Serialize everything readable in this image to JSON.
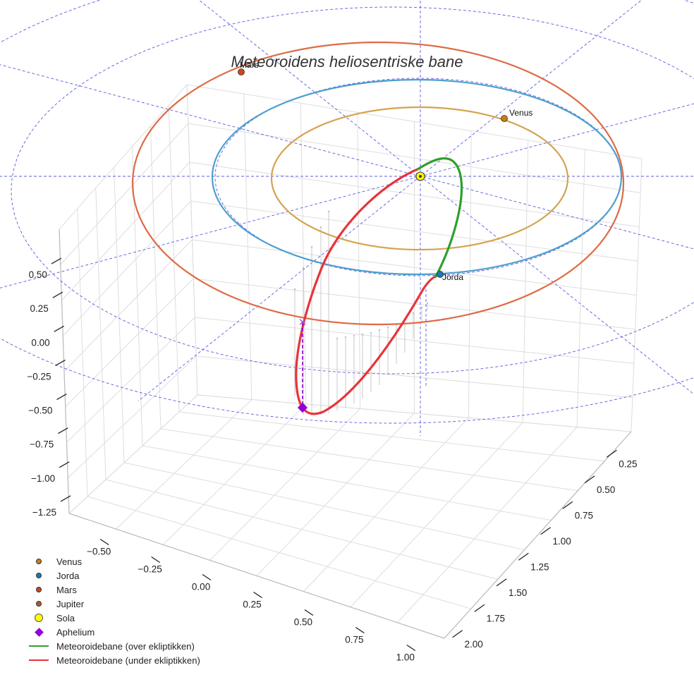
{
  "chart_data": {
    "type": "3d-line",
    "title": "Meteoroidens heliosentriske bane",
    "axes": {
      "x": {
        "ticks": [
          "−0.50",
          "−0.25",
          "0.00",
          "0.25",
          "0.50",
          "0.75",
          "1.00"
        ],
        "range": [
          -0.7,
          1.15
        ]
      },
      "y": {
        "ticks": [
          "0.25",
          "0.50",
          "0.75",
          "1.00",
          "1.25",
          "1.50",
          "1.75",
          "2.00"
        ],
        "range": [
          0.1,
          2.1
        ]
      },
      "z": {
        "ticks": [
          "0.50",
          "0.25",
          "0.00",
          "−0.25",
          "−0.50",
          "−0.75",
          "−1.00",
          "−1.25"
        ],
        "range": [
          -1.3,
          0.6
        ]
      }
    },
    "grid": true,
    "legend_position": "bottom-left",
    "planets": [
      {
        "name": "Venus",
        "label": "Venus",
        "color": "#c77d1a",
        "orbit_color": "#d4a34f",
        "orbit_radius_au": 0.72
      },
      {
        "name": "Jorda",
        "label": "Jorda",
        "color": "#1f77b4",
        "orbit_color": "#4d9fce",
        "orbit_radius_au": 1.0
      },
      {
        "name": "Mars",
        "label": "Mars",
        "color": "#d0451b",
        "orbit_color": "#dd6b45",
        "orbit_radius_au": 1.52
      },
      {
        "name": "Jupiter",
        "label": "",
        "color": "#b5562b"
      }
    ],
    "sun": {
      "name": "Sola",
      "color": "#ffff00"
    },
    "aphelion": {
      "name": "Aphelium",
      "color": "#9400d3"
    },
    "series": [
      {
        "name": "Meteoroidebane (over ekliptikken)",
        "color": "#2ca02c"
      },
      {
        "name": "Meteoroidebane (under ekliptikken)",
        "color": "#e8333a"
      }
    ]
  },
  "legend": {
    "venus": "Venus",
    "jorda": "Jorda",
    "mars": "Mars",
    "jupiter": "Jupiter",
    "sola": "Sola",
    "aphelium": "Aphelium",
    "above": "Meteoroidebane (over ekliptikken)",
    "below": "Meteoroidebane (under ekliptikken)"
  }
}
